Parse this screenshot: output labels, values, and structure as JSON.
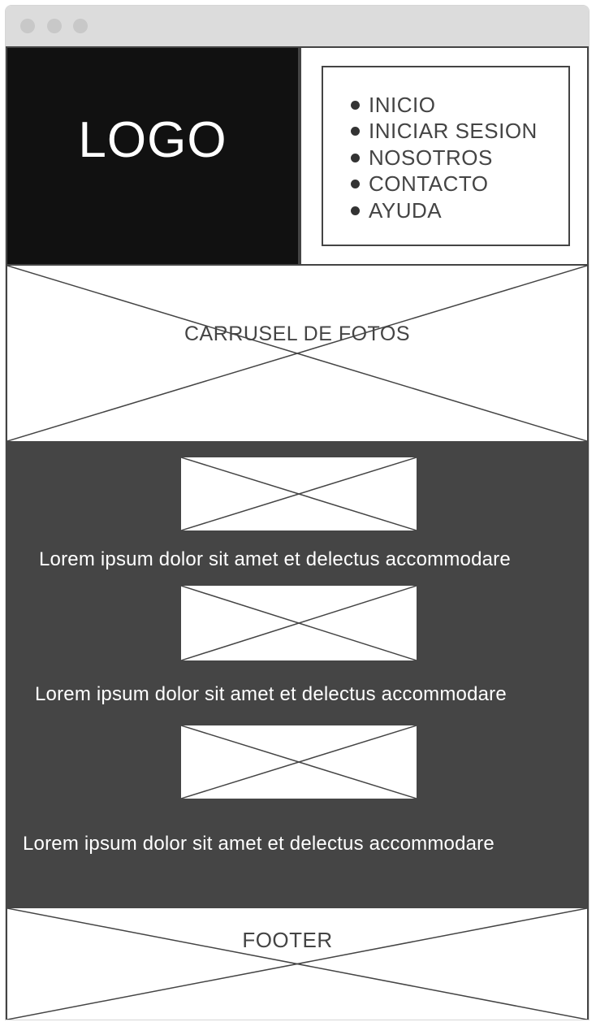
{
  "header": {
    "logo_text": "LOGO",
    "nav": [
      {
        "label": "INICIO"
      },
      {
        "label": "INICIAR SESION"
      },
      {
        "label": "NOSOTROS"
      },
      {
        "label": "CONTACTO"
      },
      {
        "label": "AYUDA"
      }
    ]
  },
  "carousel": {
    "label": "CARRUSEL DE FOTOS"
  },
  "content": {
    "items": [
      {
        "text": "Lorem ipsum dolor sit amet et delectus accommodare"
      },
      {
        "text": "Lorem ipsum dolor sit amet et delectus accommodare"
      },
      {
        "text": "Lorem ipsum dolor sit amet et delectus accommodare"
      }
    ]
  },
  "footer": {
    "label": "FOOTER"
  },
  "colors": {
    "logo_bg": "#111111",
    "content_bg": "#454545",
    "line": "#444444",
    "titlebar": "#dcdcdc"
  }
}
